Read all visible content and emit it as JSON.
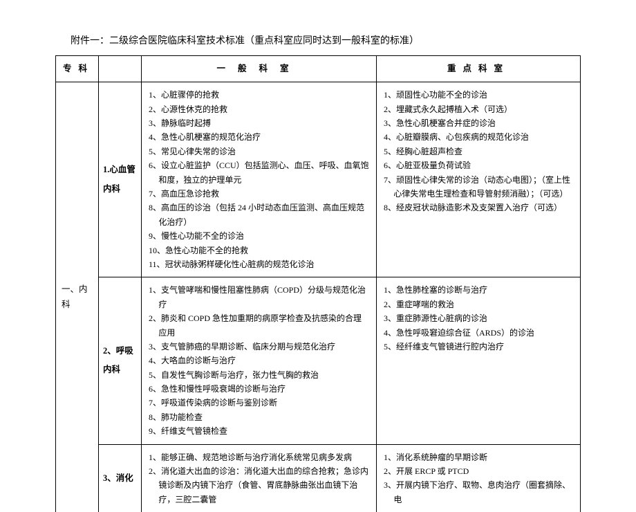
{
  "title": "附件一：二级综合医院临床科室技术标准（重点科室应同时达到一般科室的标准）",
  "headers": {
    "c1": "专科",
    "c2": "",
    "c3": "一般科室",
    "c4": "重点科室"
  },
  "specialty": "一、内科",
  "rows": [
    {
      "dept": "1.心血管内科",
      "general": [
        "1、心脏骤停的抢救",
        "2、心源性休克的抢救",
        "3、静脉临时起搏",
        "4、急性心肌梗塞的规范化治疗",
        "5、常见心律失常的诊治",
        "6、设立心脏监护（CCU）包括监测心、血压、呼吸、血氧饱和度，独立的护理单元",
        "7、高血压急诊抢救",
        "8、高血压的诊治（包括 24 小时动态血压监测、高血压规范化治疗）",
        "9、慢性心功能不全的诊治",
        "10、急性心功能不全的抢救",
        "11、冠状动脉粥样硬化性心脏病的规范化诊治"
      ],
      "key": [
        "1、顽固性心功能不全的诊治",
        "2、埋藏式永久起搏植入术（可选）",
        "3、急性心肌梗塞合并症的诊治",
        "4、心脏瓣膜病、心包疾病的规范化诊治",
        "5、经胸心脏超声检查",
        "6、心脏亚极量负荷试验",
        "7、顽固性心律失常的诊治（动态心电图）；（室上性心律失常电生理检查和导管射频消融）；（可选）",
        "8、经皮冠状动脉造影术及支架置入治疗（可选）"
      ]
    },
    {
      "dept": "2、呼吸内科",
      "general": [
        "1、支气管哮喘和慢性阻塞性肺病（COPD）分级与规范化治疗",
        "2、肺炎和 COPD 急性加重期的病原学检查及抗感染的合理应用",
        "3、支气管肺癌的早期诊断、临床分期与规范化治疗",
        "4、大咯血的诊断与治疗",
        "5、自发性气胸诊断与治疗，张力性气胸的救治",
        "6、急性和慢性呼吸衰竭的诊断与治疗",
        "7、呼吸道传染病的诊断与鉴别诊断",
        "8、肺功能检查",
        "9、纤维支气管镜检查"
      ],
      "key": [
        "1、急性肺栓塞的诊断与治疗",
        "2、重症哮喘的救治",
        "3、重症肺源性心脏病的诊治",
        "4、急性呼吸窘迫综合征（ARDS）的诊治",
        "5、经纤维支气管镜进行腔内治疗"
      ]
    },
    {
      "dept": "3、消化",
      "general": [
        "1、能够正确、规范地诊断与治疗消化系统常见病多发病",
        "2、消化道大出血的诊治：消化道大出血的综合抢救；急诊内镜诊断及内镜下治疗（食管、胃底静脉曲张出血镜下治疗，三腔二囊管"
      ],
      "key": [
        "1、消化系统肿瘤的早期诊断",
        "2、开展 ERCP 或 PTCD",
        "3、开展内镜下治疗、取物、息肉治疗（圈套摘除、电"
      ],
      "cut": true
    }
  ]
}
